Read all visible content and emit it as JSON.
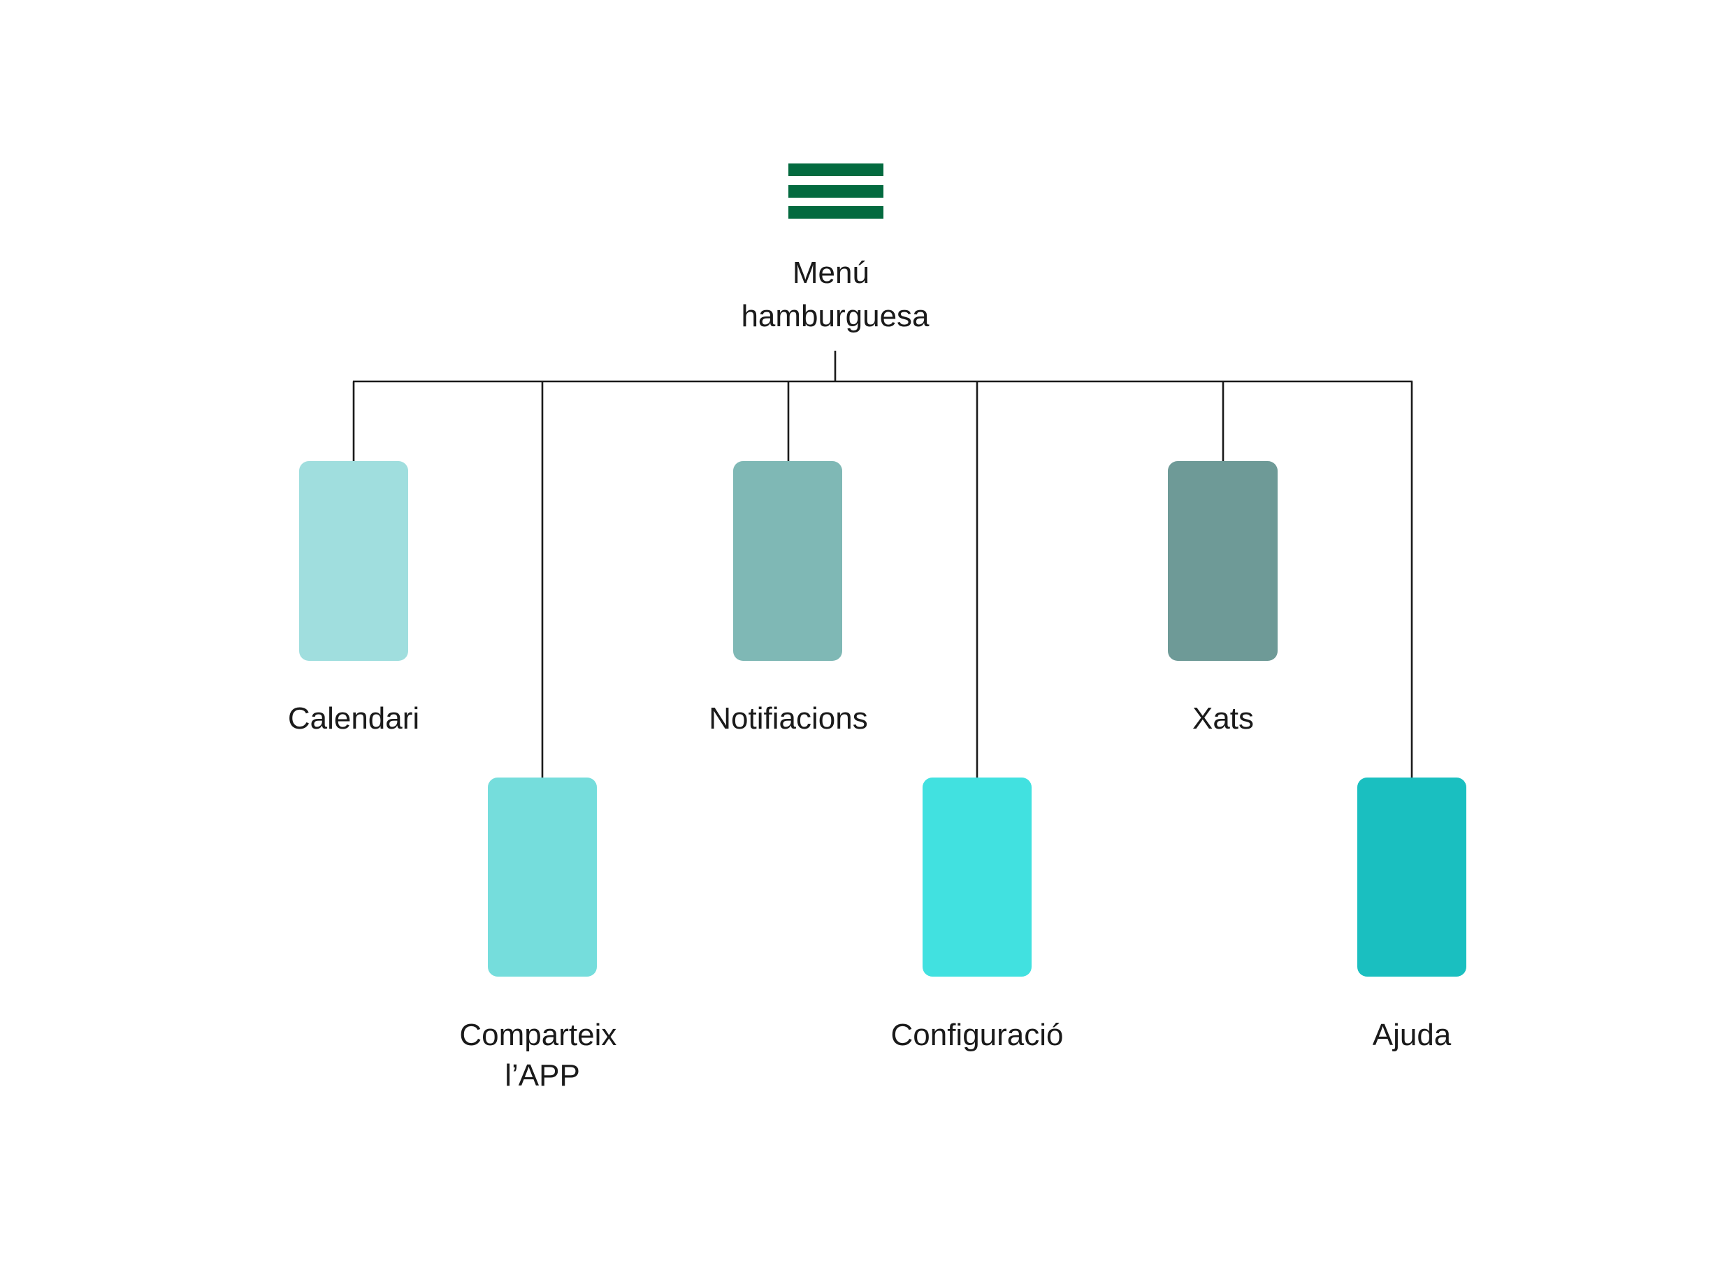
{
  "root": {
    "icon": "hamburger-menu-icon",
    "icon_color": "#036a3f",
    "label_lines": [
      "Menú",
      "hamburguesa"
    ]
  },
  "line_color": "#1a1a1a",
  "items": [
    {
      "label_lines": [
        "Calendari"
      ],
      "color": "#a0dede"
    },
    {
      "label_lines": [
        "Comparteix",
        "l’APP"
      ],
      "color": "#75dddc"
    },
    {
      "label_lines": [
        "Notifiacions"
      ],
      "color": "#7fb8b5"
    },
    {
      "label_lines": [
        "Configuració"
      ],
      "color": "#41e1e0"
    },
    {
      "label_lines": [
        "Xats"
      ],
      "color": "#6e9a97"
    },
    {
      "label_lines": [
        "Ajuda"
      ],
      "color": "#1abfc0"
    }
  ]
}
